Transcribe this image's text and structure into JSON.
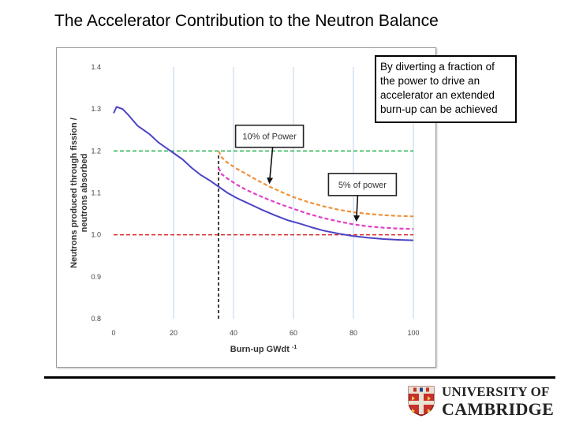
{
  "slide": {
    "title": "The Accelerator Contribution to the Neutron Balance",
    "callout": "By diverting a fraction of the power to drive an accelerator an extended burn-up can be achieved"
  },
  "logo": {
    "line1": "UNIVERSITY OF",
    "line2": "CAMBRIDGE"
  },
  "chart_data": {
    "type": "line",
    "title": "",
    "xlabel": "Burn-up GWdt",
    "xlabel_sup": "-1",
    "ylabel": "Neutrons produced through fission / neutrons absorbed",
    "xlim": [
      0,
      100
    ],
    "ylim": [
      0.8,
      1.4
    ],
    "xticks": [
      0,
      20,
      40,
      60,
      80,
      100
    ],
    "yticks": [
      0.8,
      0.9,
      1.0,
      1.1,
      1.2,
      1.3,
      1.4
    ],
    "grid": true,
    "reference_lines": [
      {
        "y": 1.2,
        "color": "#22b14c",
        "style": "dashed"
      },
      {
        "y": 1.0,
        "color": "#d62728",
        "style": "dashed"
      }
    ],
    "vertical_marker": {
      "x": 35,
      "y_from": 0.8,
      "y_to": 1.195,
      "color": "#000000",
      "style": "dashed"
    },
    "series": [
      {
        "color": "#4b44c6",
        "style": "solid",
        "x": [
          0,
          1,
          3,
          5,
          8,
          12,
          15,
          18,
          20,
          23,
          26,
          29,
          32,
          35,
          38,
          41,
          44,
          47,
          50,
          54,
          58,
          62,
          66,
          70,
          75,
          80,
          85,
          90,
          95,
          100
        ],
        "y": [
          1.29,
          1.305,
          1.3,
          1.285,
          1.26,
          1.24,
          1.22,
          1.205,
          1.195,
          1.18,
          1.16,
          1.143,
          1.13,
          1.115,
          1.1,
          1.088,
          1.078,
          1.068,
          1.058,
          1.046,
          1.035,
          1.027,
          1.018,
          1.01,
          1.003,
          0.997,
          0.993,
          0.99,
          0.988,
          0.987
        ]
      },
      {
        "color": "#f0913a",
        "style": "dashed",
        "x": [
          35,
          36,
          38,
          41,
          44,
          48,
          52,
          56,
          60,
          65,
          70,
          75,
          80,
          85,
          90,
          95,
          100
        ],
        "y": [
          1.2,
          1.185,
          1.172,
          1.158,
          1.146,
          1.13,
          1.115,
          1.102,
          1.09,
          1.078,
          1.068,
          1.06,
          1.054,
          1.05,
          1.047,
          1.045,
          1.044
        ]
      },
      {
        "color": "#e040c8",
        "style": "dashed",
        "x": [
          35,
          36,
          38,
          41,
          44,
          48,
          52,
          56,
          60,
          65,
          70,
          75,
          80,
          85,
          90,
          95,
          100
        ],
        "y": [
          1.16,
          1.145,
          1.134,
          1.12,
          1.108,
          1.095,
          1.083,
          1.072,
          1.062,
          1.05,
          1.04,
          1.032,
          1.025,
          1.02,
          1.017,
          1.015,
          1.014
        ]
      }
    ],
    "annotations": [
      {
        "text": "10% of Power",
        "box_x": 52,
        "box_y": 1.235,
        "arrow_to": [
          52,
          1.125
        ]
      },
      {
        "text": "5% of power",
        "box_x": 83,
        "box_y": 1.12,
        "arrow_to": [
          81,
          1.035
        ]
      }
    ]
  }
}
